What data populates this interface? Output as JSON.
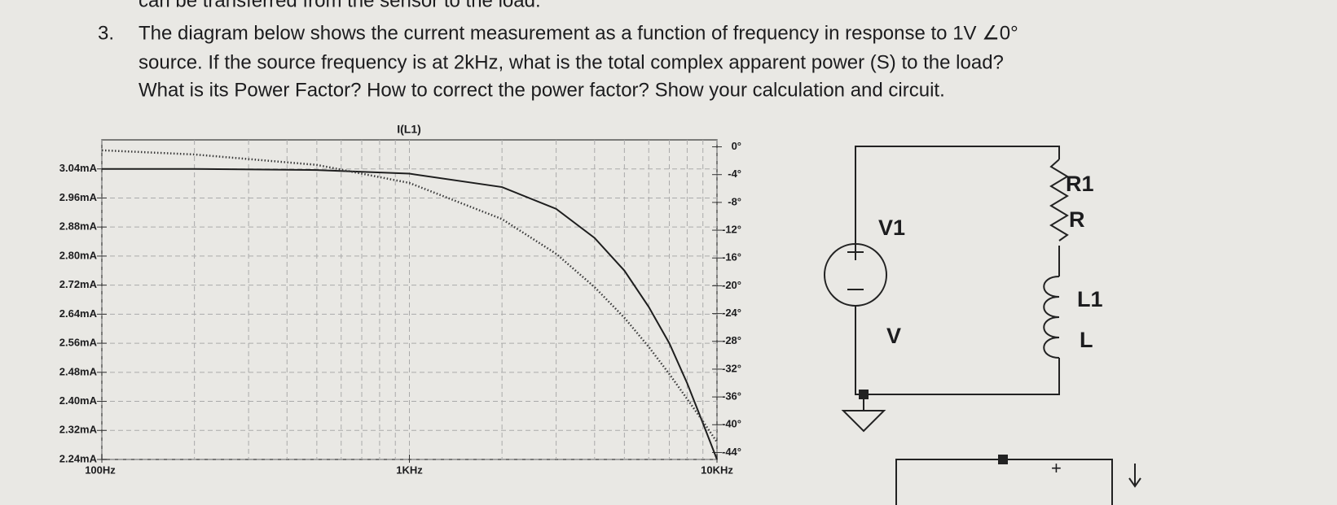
{
  "header_fragment": "can be transferred from the sensor to the load.",
  "question": {
    "number": "3.",
    "lines": [
      "The diagram below shows the current measurement as a function of frequency in response to 1V ∠0°",
      "source. If the source frequency is at 2kHz, what is the total complex apparent power (S) to the load?",
      "What is its Power Factor? How to correct the power factor? Show your calculation and circuit."
    ]
  },
  "chart_data": {
    "type": "line",
    "title": "I(L1)",
    "x_scale": "log",
    "grid": true,
    "x": [
      100,
      200,
      500,
      1000,
      2000,
      3000,
      4000,
      5000,
      6000,
      7000,
      8000,
      9000,
      10000
    ],
    "xlim": [
      100,
      10000
    ],
    "xticks": [
      {
        "value": 100,
        "label": "100Hz"
      },
      {
        "value": 1000,
        "label": "1KHz"
      },
      {
        "value": 10000,
        "label": "10KHz"
      }
    ],
    "ylim": [
      2.24,
      3.12
    ],
    "yticks": [
      {
        "value": 2.24,
        "label": "2.24mA"
      },
      {
        "value": 2.32,
        "label": "2.32mA"
      },
      {
        "value": 2.4,
        "label": "2.40mA"
      },
      {
        "value": 2.48,
        "label": "2.48mA"
      },
      {
        "value": 2.56,
        "label": "2.56mA"
      },
      {
        "value": 2.64,
        "label": "2.64mA"
      },
      {
        "value": 2.72,
        "label": "2.72mA"
      },
      {
        "value": 2.8,
        "label": "2.80mA"
      },
      {
        "value": 2.88,
        "label": "2.88mA"
      },
      {
        "value": 2.96,
        "label": "2.96mA"
      },
      {
        "value": 3.04,
        "label": "3.04mA"
      }
    ],
    "y2lim": [
      -45,
      1
    ],
    "y2ticks": [
      {
        "value": 0,
        "label": "0°"
      },
      {
        "value": -4,
        "label": "-4°"
      },
      {
        "value": -8,
        "label": "-8°"
      },
      {
        "value": -12,
        "label": "-12°"
      },
      {
        "value": -16,
        "label": "-16°"
      },
      {
        "value": -20,
        "label": "-20°"
      },
      {
        "value": -24,
        "label": "-24°"
      },
      {
        "value": -28,
        "label": "-28°"
      },
      {
        "value": -32,
        "label": "-32°"
      },
      {
        "value": -36,
        "label": "-36°"
      },
      {
        "value": -40,
        "label": "-40°"
      },
      {
        "value": -44,
        "label": "-44°"
      }
    ],
    "series": [
      {
        "color": "#1e1e1e",
        "style": "solid",
        "values": [
          3.04,
          3.04,
          3.037,
          3.027,
          2.99,
          2.93,
          2.85,
          2.76,
          2.66,
          2.56,
          2.45,
          2.34,
          2.24
        ]
      },
      {
        "color": "#3a3a3a",
        "style": "dotted",
        "axis": "y2",
        "values": [
          -0.5,
          -1.1,
          -2.6,
          -5.2,
          -10.4,
          -15.4,
          -20.2,
          -24.6,
          -28.8,
          -32.7,
          -36.3,
          -39.5,
          -42.5
        ]
      }
    ]
  },
  "circuit": {
    "source_name": "V1",
    "source_value": "V",
    "resistor_name": "R1",
    "resistor_value": "R",
    "inductor_name": "L1",
    "inductor_value": "L",
    "plus_sign": "+"
  }
}
